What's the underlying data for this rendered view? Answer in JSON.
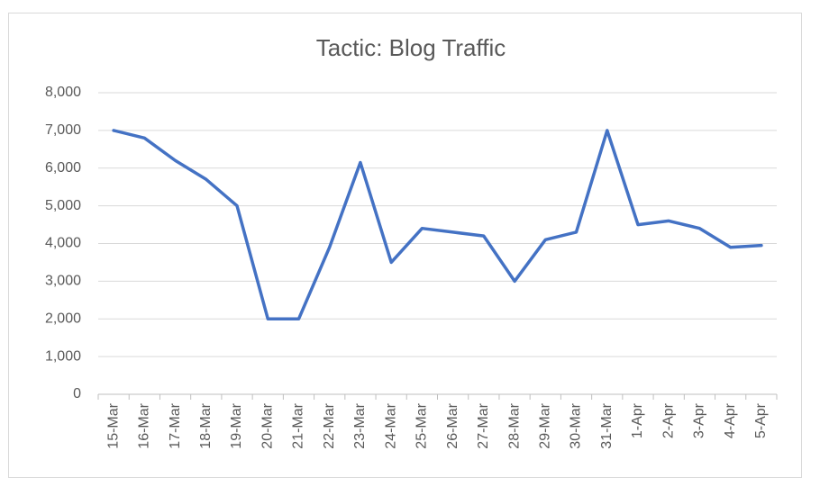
{
  "chart_data": {
    "type": "line",
    "title": "Tactic: Blog Traffic",
    "categories": [
      "15-Mar",
      "16-Mar",
      "17-Mar",
      "18-Mar",
      "19-Mar",
      "20-Mar",
      "21-Mar",
      "22-Mar",
      "23-Mar",
      "24-Mar",
      "25-Mar",
      "26-Mar",
      "27-Mar",
      "28-Mar",
      "29-Mar",
      "30-Mar",
      "31-Mar",
      "1-Apr",
      "2-Apr",
      "3-Apr",
      "4-Apr",
      "5-Apr"
    ],
    "values": [
      7000,
      6800,
      6200,
      5700,
      5000,
      2000,
      2000,
      3900,
      6150,
      3500,
      4400,
      4300,
      4200,
      3000,
      4100,
      4300,
      7000,
      4500,
      4600,
      4400,
      3900,
      3950
    ],
    "color": "#4472c4",
    "ylim": [
      0,
      8000
    ],
    "yticks": [
      0,
      {
        "value": 1000,
        "label": "1,000"
      },
      {
        "value": 2000,
        "label": "2,000"
      },
      {
        "value": 3000,
        "label": "3,000"
      },
      {
        "value": 4000,
        "label": "4,000"
      },
      {
        "value": 5000,
        "label": "5,000"
      },
      {
        "value": 6000,
        "label": "6,000"
      },
      {
        "value": 7000,
        "label": "7,000"
      },
      {
        "value": 8000,
        "label": "8,000"
      }
    ],
    "grid": true
  }
}
